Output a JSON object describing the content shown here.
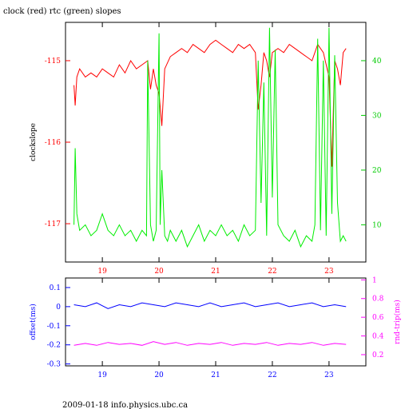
{
  "title": "clock (red) rtc (green) slopes",
  "footer": "2009-01-18 info.physics.ubc.ca",
  "colors": {
    "clock": "#ff0000",
    "rtc": "#00ee00",
    "offset": "#0000ff",
    "roundtrip": "#ff00ff",
    "axis": "#000000"
  },
  "chart_data": [
    {
      "type": "line",
      "title": "clock (red) rtc (green) slopes",
      "xlabel": "",
      "ylabel": "clockslope",
      "y2label": "",
      "xlim": [
        18.35,
        23.65
      ],
      "ylim": [
        -117.47,
        -114.53
      ],
      "y2lim": [
        3.2,
        47.0
      ],
      "xticks": [
        "19",
        "20",
        "21",
        "22",
        "23"
      ],
      "yticks": [
        "-115",
        "-116",
        "-117"
      ],
      "y2ticks": [
        "40",
        "30",
        "20",
        "10"
      ],
      "series": [
        {
          "name": "clock",
          "axis": "left",
          "x": [
            18.5,
            18.52,
            18.55,
            18.6,
            18.7,
            18.8,
            18.9,
            19.0,
            19.1,
            19.2,
            19.3,
            19.4,
            19.5,
            19.6,
            19.7,
            19.8,
            19.85,
            19.9,
            19.95,
            20.0,
            20.05,
            20.1,
            20.2,
            20.3,
            20.4,
            20.5,
            20.6,
            20.7,
            20.8,
            20.9,
            21.0,
            21.1,
            21.2,
            21.3,
            21.4,
            21.5,
            21.6,
            21.7,
            21.75,
            21.8,
            21.85,
            21.9,
            21.95,
            22.0,
            22.1,
            22.2,
            22.3,
            22.4,
            22.5,
            22.6,
            22.7,
            22.8,
            22.9,
            23.0,
            23.05,
            23.1,
            23.15,
            23.2,
            23.25,
            23.3
          ],
          "y": [
            -115.3,
            -115.55,
            -115.2,
            -115.1,
            -115.2,
            -115.15,
            -115.2,
            -115.1,
            -115.15,
            -115.2,
            -115.05,
            -115.15,
            -115.0,
            -115.1,
            -115.05,
            -115.0,
            -115.35,
            -115.1,
            -115.3,
            -115.4,
            -115.8,
            -115.1,
            -114.95,
            -114.9,
            -114.85,
            -114.9,
            -114.8,
            -114.85,
            -114.9,
            -114.8,
            -114.75,
            -114.8,
            -114.85,
            -114.9,
            -114.8,
            -114.85,
            -114.8,
            -114.9,
            -115.6,
            -115.3,
            -114.9,
            -115.0,
            -115.2,
            -114.9,
            -114.85,
            -114.9,
            -114.8,
            -114.85,
            -114.9,
            -114.95,
            -115.0,
            -114.8,
            -114.9,
            -115.2,
            -116.3,
            -115.0,
            -115.1,
            -115.3,
            -114.9,
            -114.85
          ]
        },
        {
          "name": "rtc",
          "axis": "right",
          "x": [
            18.5,
            18.52,
            18.55,
            18.6,
            18.7,
            18.8,
            18.9,
            19.0,
            19.1,
            19.2,
            19.3,
            19.4,
            19.5,
            19.6,
            19.7,
            19.78,
            19.8,
            19.85,
            19.9,
            19.95,
            20.0,
            20.02,
            20.05,
            20.1,
            20.15,
            20.2,
            20.3,
            20.4,
            20.5,
            20.6,
            20.7,
            20.8,
            20.9,
            21.0,
            21.1,
            21.2,
            21.3,
            21.4,
            21.5,
            21.6,
            21.7,
            21.75,
            21.8,
            21.85,
            21.9,
            21.95,
            22.0,
            22.05,
            22.1,
            22.2,
            22.3,
            22.4,
            22.5,
            22.6,
            22.7,
            22.75,
            22.8,
            22.85,
            22.9,
            22.95,
            23.0,
            23.05,
            23.1,
            23.15,
            23.2,
            23.25,
            23.3
          ],
          "y": [
            10,
            24,
            12,
            9,
            10,
            8,
            9,
            12,
            9,
            8,
            10,
            8,
            9,
            7,
            9,
            8,
            40,
            10,
            7,
            9,
            45,
            10,
            20,
            8,
            7,
            9,
            7,
            9,
            6,
            8,
            10,
            7,
            9,
            8,
            10,
            8,
            9,
            7,
            10,
            8,
            9,
            40,
            14,
            36,
            8,
            46,
            15,
            42,
            10,
            8,
            7,
            9,
            6,
            8,
            7,
            10,
            44,
            9,
            40,
            8,
            46,
            12,
            41,
            14,
            7,
            8,
            7
          ]
        }
      ]
    },
    {
      "type": "line",
      "title": "",
      "xlabel": "",
      "ylabel": "offset(ms)",
      "y2label": "rnd-trip(ms)",
      "xlim": [
        18.35,
        23.65
      ],
      "ylim": [
        -0.31,
        0.15
      ],
      "y2lim": [
        0.08,
        1.02
      ],
      "xticks": [
        "19",
        "20",
        "21",
        "22",
        "23"
      ],
      "yticks": [
        "0.1",
        "0",
        "-0.1",
        "-0.2",
        "-0.3"
      ],
      "y2ticks": [
        "1",
        "0.8",
        "0.6",
        "0.4",
        "0.2"
      ],
      "series": [
        {
          "name": "offset",
          "axis": "left",
          "x": [
            18.5,
            18.7,
            18.9,
            19.1,
            19.3,
            19.5,
            19.7,
            19.9,
            20.1,
            20.3,
            20.5,
            20.7,
            20.9,
            21.1,
            21.3,
            21.5,
            21.7,
            21.9,
            22.1,
            22.3,
            22.5,
            22.7,
            22.9,
            23.1,
            23.3
          ],
          "y": [
            0.01,
            0.0,
            0.02,
            -0.01,
            0.01,
            0.0,
            0.02,
            0.01,
            0.0,
            0.02,
            0.01,
            0.0,
            0.02,
            0.0,
            0.01,
            0.02,
            0.0,
            0.01,
            0.02,
            0.0,
            0.01,
            0.02,
            0.0,
            0.01,
            0.0
          ]
        },
        {
          "name": "roundtrip",
          "axis": "right",
          "x": [
            18.5,
            18.7,
            18.9,
            19.1,
            19.3,
            19.5,
            19.7,
            19.9,
            20.1,
            20.3,
            20.5,
            20.7,
            20.9,
            21.1,
            21.3,
            21.5,
            21.7,
            21.9,
            22.1,
            22.3,
            22.5,
            22.7,
            22.9,
            23.1,
            23.3
          ],
          "y": [
            0.3,
            0.32,
            0.3,
            0.33,
            0.31,
            0.32,
            0.3,
            0.34,
            0.31,
            0.33,
            0.3,
            0.32,
            0.31,
            0.33,
            0.3,
            0.32,
            0.31,
            0.33,
            0.3,
            0.32,
            0.31,
            0.33,
            0.3,
            0.32,
            0.31
          ]
        }
      ]
    }
  ]
}
